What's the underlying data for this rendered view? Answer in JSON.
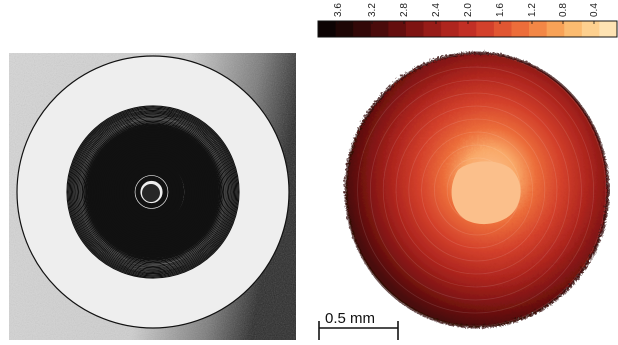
{
  "colorbar": {
    "tick_labels": [
      "3.6",
      "3.2",
      "2.8",
      "2.4",
      "2.0",
      "1.6",
      "1.2",
      "0.8",
      "0.4"
    ],
    "colors": [
      "#0c0303",
      "#1e0605",
      "#320808",
      "#4a0b0b",
      "#640e0e",
      "#7e1412",
      "#971c18",
      "#ae251e",
      "#c22f25",
      "#d3402b",
      "#e15632",
      "#ec6d3a",
      "#f38746",
      "#f8a257",
      "#fbbb70",
      "#fdd08f",
      "#fee3b3"
    ]
  },
  "scale_bar": {
    "label": "0.5 mm"
  },
  "panels": {
    "left_icon": "interference-rings-photo",
    "right_icon": "thickness-heatmap-disc"
  }
}
